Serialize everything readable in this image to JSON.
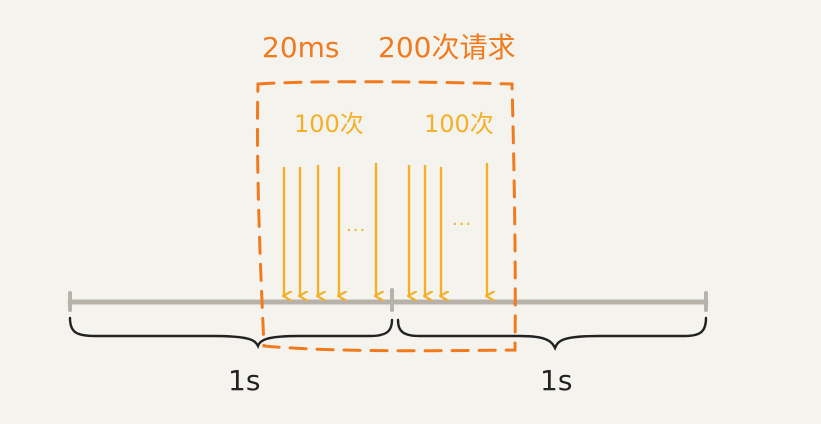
{
  "window_label": "20ms",
  "request_total_label": "200次请求",
  "bursts": [
    {
      "label": "100次",
      "ellipsis": "···"
    },
    {
      "label": "100次",
      "ellipsis": "···"
    }
  ],
  "seconds": [
    {
      "label": "1s"
    },
    {
      "label": "1s"
    }
  ],
  "colors": {
    "background": "#f5f3ee",
    "window_dash": "#f07a1e",
    "arrows": "#f2b127",
    "timeline": "#b7b2aa",
    "braces": "#222222"
  }
}
